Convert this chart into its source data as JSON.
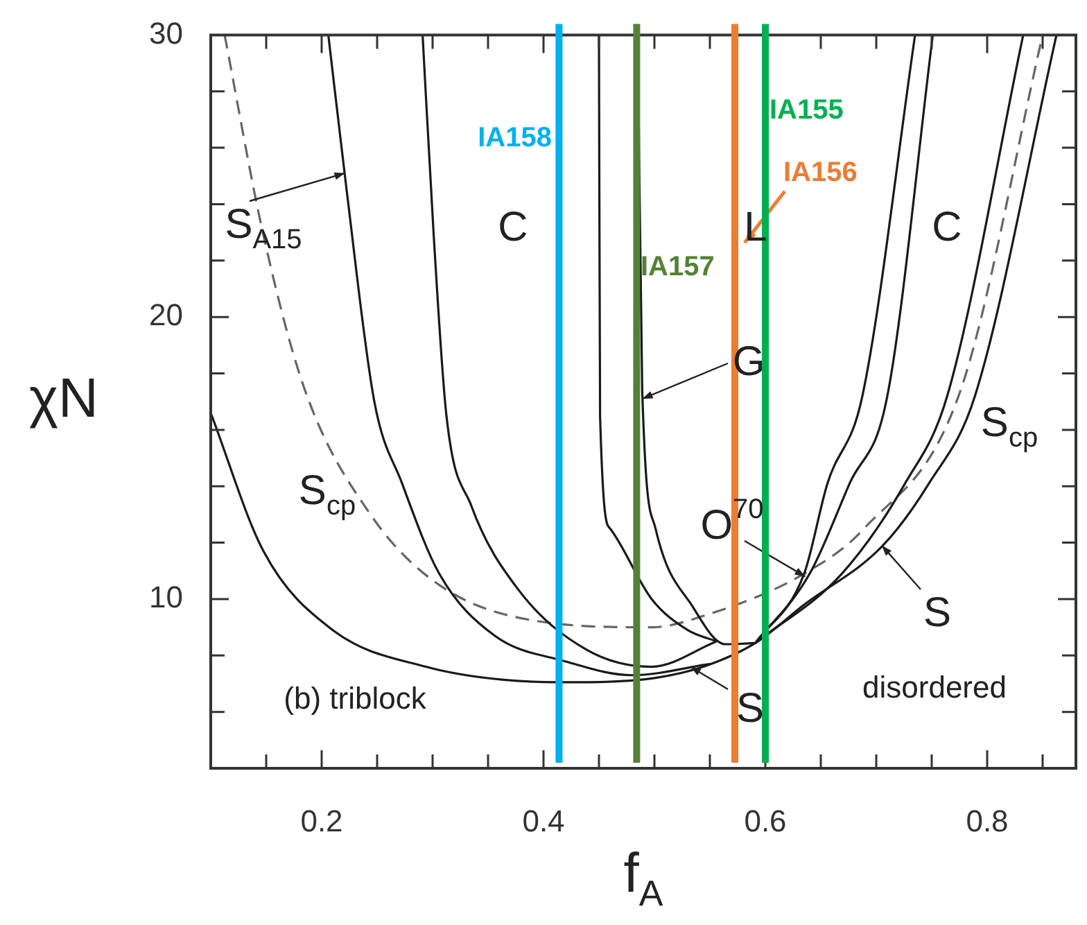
{
  "chart_data": {
    "type": "line",
    "xlabel": "f$_{A}$",
    "ylabel": "χN",
    "xlim": [
      0.1,
      0.88
    ],
    "ylim": [
      4,
      30
    ],
    "xticks": [
      {
        "value": 0.15,
        "label": null
      },
      0.2,
      {
        "value": 0.25,
        "label": null
      },
      {
        "value": 0.3,
        "label": null
      },
      {
        "value": 0.35,
        "label": null
      },
      0.4,
      {
        "value": 0.45,
        "label": null
      },
      {
        "value": 0.5,
        "label": null
      },
      {
        "value": 0.55,
        "label": null
      },
      0.6,
      {
        "value": 0.65,
        "label": null
      },
      {
        "value": 0.7,
        "label": null
      },
      {
        "value": 0.75,
        "label": null
      },
      0.8,
      {
        "value": 0.85,
        "label": null
      }
    ],
    "yticks": [
      {
        "value": 6,
        "label": null
      },
      {
        "value": 8,
        "label": null
      },
      10,
      {
        "value": 12,
        "label": null
      },
      {
        "value": 14,
        "label": null
      },
      {
        "value": 16,
        "label": null
      },
      {
        "value": 18,
        "label": null
      },
      20,
      {
        "value": 22,
        "label": null
      },
      {
        "value": 24,
        "label": null
      },
      {
        "value": 26,
        "label": null
      },
      {
        "value": 28,
        "label": null
      },
      30
    ],
    "grid": false,
    "legend": false,
    "marker": "none",
    "series": [
      {
        "type": "line",
        "color": "#1a1a1a",
        "line_style": "solid",
        "x": [
          0.1,
          0.1475,
          0.21,
          0.294,
          0.376,
          0.43,
          0.5,
          0.544,
          0.591,
          0.635,
          0.706,
          0.7475,
          0.789,
          0.8625
        ],
        "values": [
          16.6,
          11.7,
          8.9,
          7.6,
          7.1,
          7.05,
          7.2,
          7.6,
          8.44,
          9.8,
          11.9,
          14.1,
          17.2,
          30
        ]
      },
      {
        "type": "line",
        "color": "#1a1a1a",
        "line_style": "solid",
        "x": [
          0.206,
          0.2225,
          0.2475,
          0.2725,
          0.306,
          0.356,
          0.419,
          0.48,
          0.55
        ],
        "values": [
          30,
          24.5,
          17,
          14.1,
          10.9,
          8.7,
          7.8,
          7.3,
          7.7
        ]
      },
      {
        "type": "line",
        "color": "#1a1a1a",
        "line_style": "solid",
        "x": [
          0.291,
          0.301,
          0.3125,
          0.335,
          0.376,
          0.439,
          0.4975,
          0.556
        ],
        "values": [
          30,
          22.9,
          16.5,
          13.3,
          10.4,
          8.2,
          7.6,
          8.5
        ]
      },
      {
        "type": "line",
        "color": "#1a1a1a",
        "line_style": "solid",
        "x": [
          0.45,
          0.451,
          0.46,
          0.4975,
          0.53,
          0.556
        ],
        "values": [
          30,
          16.5,
          12.5,
          10,
          8.9,
          8.5
        ]
      },
      {
        "type": "line",
        "color": "#1a1a1a",
        "line_style": "solid",
        "x": [
          0.485,
          0.489,
          0.501,
          0.535,
          0.564,
          0.591
        ],
        "values": [
          30,
          17.4,
          12.5,
          9.7,
          8.4,
          8.44
        ]
      },
      {
        "type": "line",
        "color": "#1a1a1a",
        "line_style": "solid",
        "x": [
          0.591,
          0.635,
          0.656,
          0.6875,
          0.735
        ],
        "values": [
          8.44,
          10.9,
          14.1,
          17.2,
          30
        ]
      },
      {
        "type": "line",
        "color": "#1a1a1a",
        "line_style": "solid",
        "x": [
          0.591,
          0.64,
          0.676,
          0.71,
          0.751
        ],
        "values": [
          8.44,
          10.9,
          14.1,
          17.2,
          30
        ]
      },
      {
        "type": "line",
        "color": "#1a1a1a",
        "line_style": "solid",
        "x": [
          0.591,
          0.669,
          0.726,
          0.764,
          0.8325
        ],
        "values": [
          8.44,
          10.9,
          14.1,
          17.2,
          30
        ]
      },
      {
        "type": "line",
        "color": "#666666",
        "line_style": "dashed",
        "x": [
          0.1125,
          0.1475,
          0.185,
          0.244,
          0.306,
          0.3975,
          0.4975,
          0.544,
          0.635,
          0.689,
          0.776,
          0.85
        ],
        "values": [
          30,
          22.9,
          17.4,
          13,
          10.5,
          9.2,
          9,
          9.4,
          10.9,
          12.5,
          17.4,
          30
        ]
      }
    ],
    "ref_lines": [
      {
        "axis": "x",
        "value": 0.414,
        "label": "IA158",
        "color": "#00b0f0"
      },
      {
        "axis": "x",
        "value": 0.484,
        "label": "IA157",
        "color": "#548235"
      },
      {
        "axis": "x",
        "value": 0.5725,
        "label": "IA156",
        "color": "#ed7d31"
      },
      {
        "axis": "x",
        "value": 0.6,
        "label": "IA155",
        "color": "#00b050"
      }
    ],
    "annotations": [
      {
        "text": "S$_{A15}$",
        "x": 0.221,
        "y": 25.1
      },
      "C",
      "L",
      "C",
      {
        "text": "G",
        "x": 0.489,
        "y": 17.1
      },
      "S$_{cp}$",
      "S$_{cp}$",
      {
        "text": "O$^{70}$",
        "x": 0.636,
        "y": 10.8
      },
      {
        "text": "S",
        "x": 0.705,
        "y": 11.9
      },
      {
        "text": "S",
        "x": 0.5325,
        "y": 7.6
      },
      "(b) triblock",
      "disordered"
    ]
  }
}
